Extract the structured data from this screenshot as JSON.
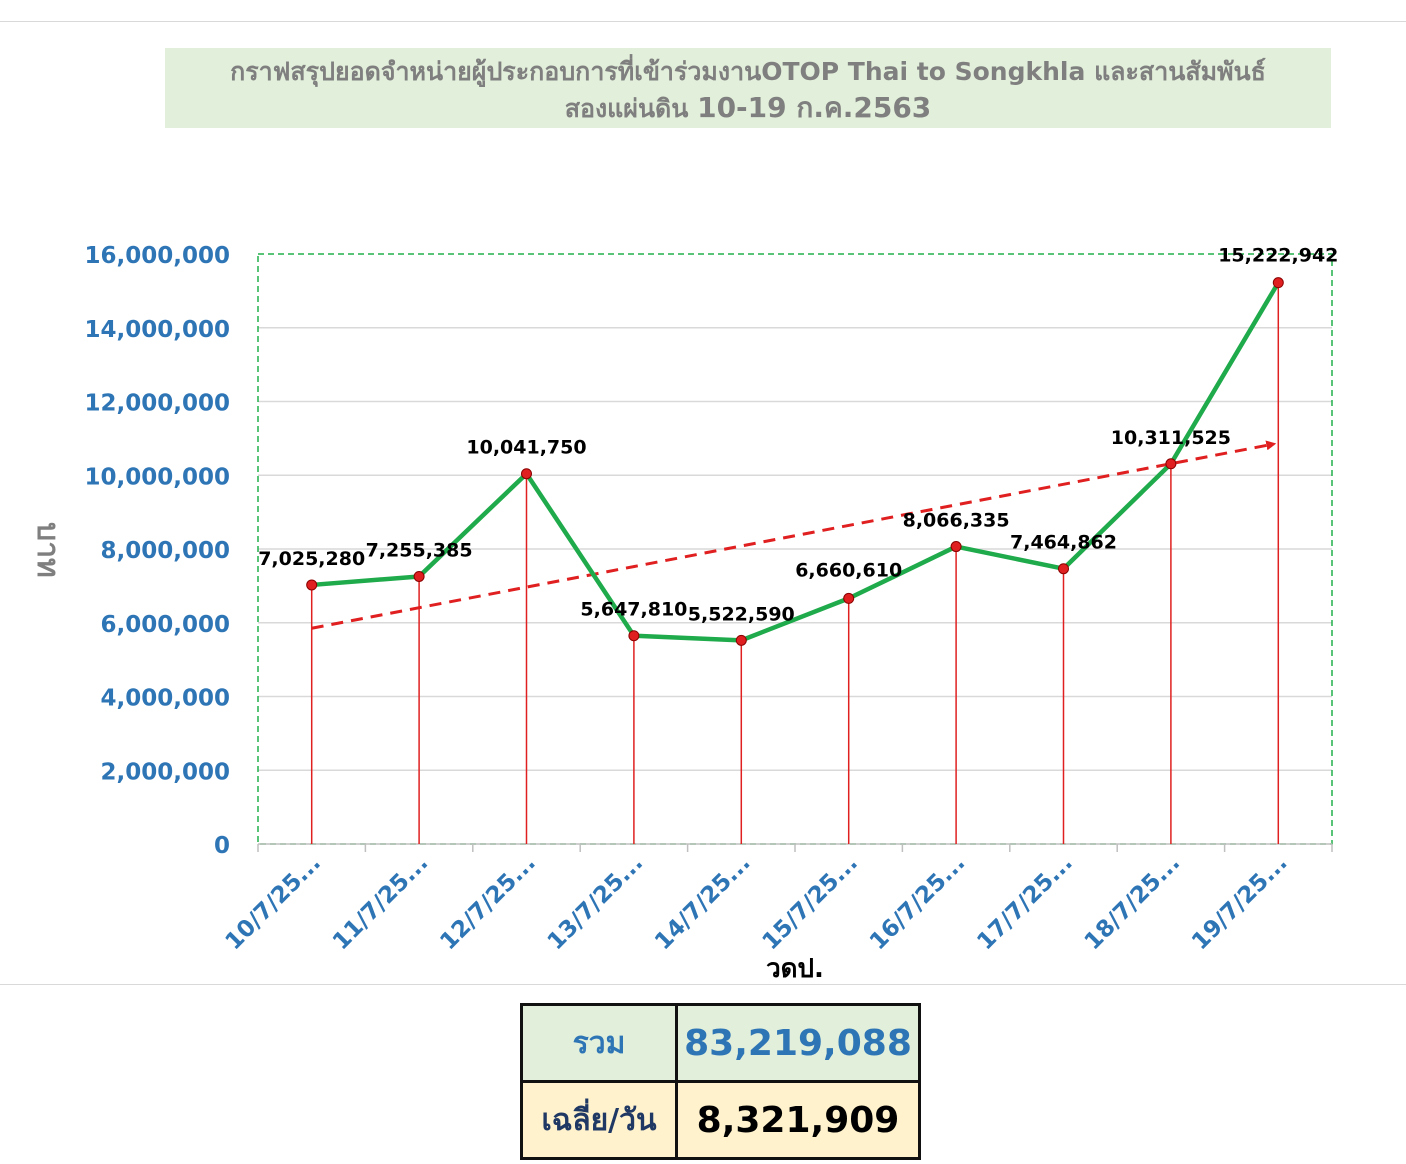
{
  "title_line1": "กราฟสรุปยอดจำหน่ายผู้ประกอบการที่เข้าร่วมงานOTOP Thai to Songkhla และสานสัมพันธ์",
  "title_line2_prefix": "สองแผ่นดิน",
  "title_line2_dates": "10-19 ก.ค.2563",
  "summary": {
    "total_label": "รวม",
    "total_value": "83,219,088",
    "avg_label": "เฉลี่ย/วัน",
    "avg_value": "8,321,909"
  },
  "colors": {
    "line": "#1faa4b",
    "marker": "#e02020",
    "drop_lines": "#e02020",
    "trend": "#e02020",
    "axis_text": "#2e75b6",
    "plot_border": "#22b14c",
    "title_bg": "#e2efda"
  },
  "chart_data": {
    "type": "line",
    "xlabel": "วดป.",
    "ylabel": "บาท",
    "ylim": [
      0,
      16000000
    ],
    "ytick_labels": [
      "0",
      "2,000,000",
      "4,000,000",
      "6,000,000",
      "8,000,000",
      "10,000,000",
      "12,000,000",
      "14,000,000",
      "16,000,000"
    ],
    "categories": [
      "10/7/25...",
      "11/7/25...",
      "12/7/25...",
      "13/7/25...",
      "14/7/25...",
      "15/7/25...",
      "16/7/25...",
      "17/7/25...",
      "18/7/25...",
      "19/7/25..."
    ],
    "values": [
      7025280,
      7255385,
      10041750,
      5647810,
      5522590,
      6660610,
      8066335,
      7464862,
      10311525,
      15222942
    ],
    "data_labels": [
      "7,025,280",
      "7,255,385",
      "10,041,750",
      "5,647,810",
      "5,522,590",
      "6,660,610",
      "8,066,335",
      "7,464,862",
      "10,311,525",
      "15,222,942"
    ],
    "trendline": {
      "style": "dashed",
      "arrow": true,
      "start": 5850000,
      "end": 10850000
    },
    "drop_lines": true,
    "grid": true
  }
}
